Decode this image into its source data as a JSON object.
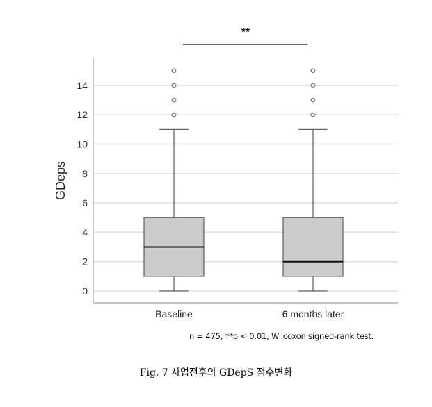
{
  "chart_data": {
    "type": "box",
    "title": "",
    "xlabel": "",
    "ylabel": "GDeps",
    "ylim": [
      0,
      15.5
    ],
    "yticks": [
      0,
      2,
      4,
      6,
      8,
      10,
      12,
      14
    ],
    "grid": true,
    "categories": [
      "Baseline",
      "6 months later"
    ],
    "series": [
      {
        "name": "Baseline",
        "whisker_low": 0,
        "q1": 1,
        "median": 3,
        "q3": 5,
        "whisker_high": 11,
        "outliers": [
          12,
          13,
          14,
          15
        ]
      },
      {
        "name": "6 months later",
        "whisker_low": 0,
        "q1": 1,
        "median": 2,
        "q3": 5,
        "whisker_high": 11,
        "outliers": [
          12,
          13,
          14,
          15
        ]
      }
    ],
    "annotations": [
      {
        "type": "significance-bracket",
        "between": [
          "Baseline",
          "6 months later"
        ],
        "label": "**"
      }
    ],
    "colors": {
      "box_fill": "#cccccc",
      "box_stroke": "#666666",
      "median": "#111111",
      "grid": "#dddddd"
    }
  },
  "plot": {
    "y_axis_title": "GDeps",
    "y_tick_labels": [
      "0",
      "2",
      "4",
      "6",
      "8",
      "10",
      "12",
      "14"
    ],
    "x_labels": [
      "Baseline",
      "6 months later"
    ],
    "significance_label": "**"
  },
  "note": "n = 475, **p < 0.01, Wilcoxon signed-rank test.",
  "caption": "Fig. 7  사업전후의 GDepS 점수변화"
}
